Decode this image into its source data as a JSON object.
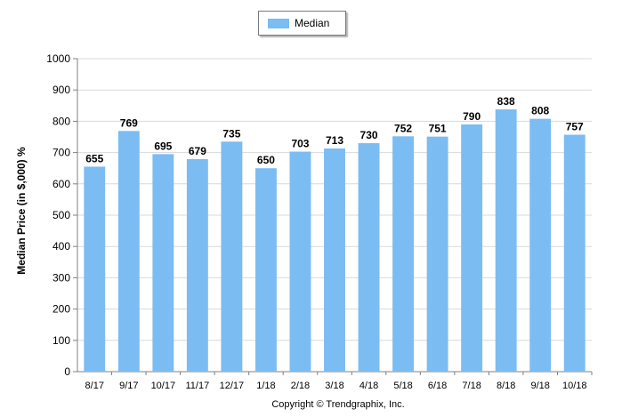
{
  "chart_data": {
    "type": "bar",
    "categories": [
      "8/17",
      "9/17",
      "10/17",
      "11/17",
      "12/17",
      "1/18",
      "2/18",
      "3/18",
      "4/18",
      "5/18",
      "6/18",
      "7/18",
      "8/18",
      "9/18",
      "10/18"
    ],
    "series": [
      {
        "name": "Median",
        "color": "#7bbcf3",
        "values": [
          655,
          769,
          695,
          679,
          735,
          650,
          703,
          713,
          730,
          752,
          751,
          790,
          838,
          808,
          757
        ]
      }
    ],
    "ylabel": "Median Price (in $,000) %",
    "xlabel": "",
    "ylim": [
      0,
      1000
    ],
    "yticks": [
      0,
      100,
      200,
      300,
      400,
      500,
      600,
      700,
      800,
      900,
      1000
    ],
    "grid": true,
    "legend_position": "top-center",
    "data_labels": true
  },
  "legend": {
    "label": "Median",
    "color": "#7bbcf3"
  },
  "footer": {
    "copyright": "Copyright © Trendgraphix, Inc."
  },
  "colors": {
    "bar": "#7bbcf3",
    "grid": "#d9d9d9",
    "axis": "#808080"
  }
}
